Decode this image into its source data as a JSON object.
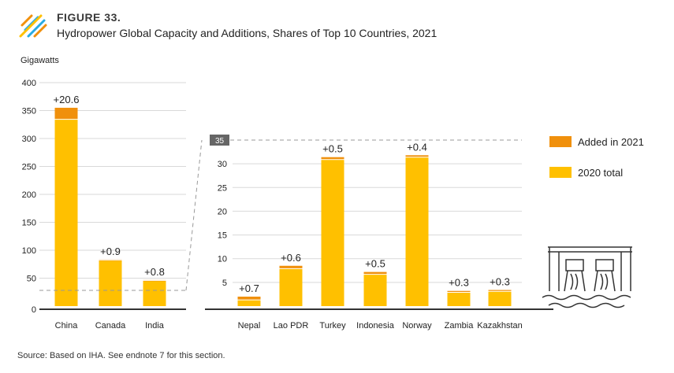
{
  "figure": {
    "label": "FIGURE 33.",
    "title": "Hydropower Global Capacity and Additions, Shares of Top 10 Countries, 2021",
    "source": "Source: Based on IHA. See endnote 7 for this section."
  },
  "colors": {
    "total_2020": "#FFC000",
    "added_2021": "#F0900C",
    "grid": "#D9D9D9",
    "axis": "#333333",
    "dashed": "#999999",
    "icon": "#333333"
  },
  "chart_data": [
    {
      "type": "bar",
      "stacked": true,
      "ylabel": "Gigawatts",
      "ylim": [
        0,
        400
      ],
      "yticks": [
        0,
        50,
        100,
        150,
        200,
        250,
        300,
        350,
        400
      ],
      "grid": true,
      "categories": [
        "China",
        "Canada",
        "India"
      ],
      "series": [
        {
          "name": "2020 total",
          "values": [
            334.4,
            82.5,
            45.9
          ]
        },
        {
          "name": "Added in 2021",
          "values": [
            20.6,
            0.9,
            0.8
          ]
        }
      ],
      "labels": [
        "+20.6",
        "+0.9",
        "+0.8"
      ]
    },
    {
      "type": "bar",
      "stacked": true,
      "ylim": [
        0,
        35
      ],
      "yticks": [
        5,
        10,
        15,
        20,
        25,
        30
      ],
      "top_label": "35",
      "grid": true,
      "categories": [
        "Nepal",
        "Lao PDR",
        "Turkey",
        "Indonesia",
        "Norway",
        "Zambia",
        "Kazakhstan"
      ],
      "series": [
        {
          "name": "2020 total",
          "values": [
            1.3,
            7.9,
            30.9,
            6.7,
            31.4,
            2.9,
            3.1
          ]
        },
        {
          "name": "Added in 2021",
          "values": [
            0.7,
            0.6,
            0.5,
            0.5,
            0.4,
            0.3,
            0.3
          ]
        }
      ],
      "labels": [
        "+0.7",
        "+0.6",
        "+0.5",
        "+0.5",
        "+0.4",
        "+0.3",
        "+0.3"
      ]
    }
  ],
  "legend": {
    "position": "right",
    "items": [
      {
        "label": "Added in 2021",
        "color": "#F0900C"
      },
      {
        "label": "2020 total",
        "color": "#FFC000"
      }
    ]
  }
}
